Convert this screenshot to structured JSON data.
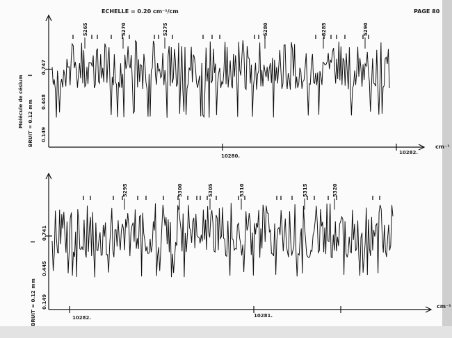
{
  "header": {
    "scale": "ECHELLE = 0.20 cm⁻¹/cm",
    "page": "PAGE 80"
  },
  "chart_data": [
    {
      "type": "line",
      "labels": {
        "molecule": "Molécule de césium",
        "noise": "BRUIT = 0.12 mm",
        "marker": "I",
        "unit": "cm⁻¹"
      },
      "y_ticks": [
        "0.747",
        "0.448",
        "0.149"
      ],
      "x_ticks": [
        "10280.",
        "10282."
      ],
      "line_numbers": [
        "5265",
        "5270",
        "5275",
        "5280",
        "5285",
        "5290"
      ]
    },
    {
      "type": "line",
      "labels": {
        "noise": "BRUIT = 0.12 mm",
        "marker": "I",
        "unit": "cm⁻¹"
      },
      "y_ticks": [
        "0.741",
        "0.445",
        "0.149"
      ],
      "x_ticks": [
        "10282.",
        "10281."
      ],
      "line_numbers": [
        "5295",
        "5300",
        "5305",
        "5310",
        "5315",
        "5320"
      ]
    }
  ]
}
